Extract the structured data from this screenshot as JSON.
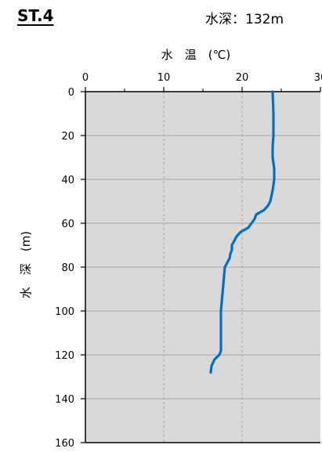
{
  "header": {
    "station": "ST.4",
    "depth_label": "水深",
    "depth_sep": "：",
    "depth_value": "132m"
  },
  "chart_data": {
    "type": "line",
    "title": "",
    "xlabel": "水　温　(℃)",
    "ylabel": "水　深　(m)",
    "x_axis_position": "top",
    "y_inverted": true,
    "xlim": [
      0,
      30
    ],
    "ylim": [
      0,
      160
    ],
    "x_ticks": [
      0,
      10,
      20,
      30
    ],
    "y_ticks": [
      0,
      20,
      40,
      60,
      80,
      100,
      120,
      140,
      160
    ],
    "grid": true,
    "colors": {
      "plot_bg": "#d9d9d9",
      "line": "#0070c0",
      "grid": "#a6a6a6"
    },
    "series": [
      {
        "x": [
          23.9,
          24.0,
          24.0,
          23.9,
          23.9,
          24.1,
          24.1,
          23.9,
          23.6,
          23.3,
          22.8,
          21.8,
          21.6,
          21.2,
          20.8,
          19.8,
          19.3,
          18.7,
          18.7,
          18.5,
          18.4,
          18.1,
          17.8,
          17.7,
          17.6,
          17.5,
          17.4,
          17.3,
          17.3,
          17.3,
          17.3,
          17.1,
          16.5,
          16.1,
          16.0
        ],
        "y": [
          0,
          10,
          20,
          25,
          30,
          35,
          40,
          45,
          50,
          52,
          54,
          56,
          58,
          60,
          62,
          64,
          66,
          70,
          72,
          74,
          76,
          78,
          80,
          84,
          88,
          92,
          96,
          100,
          110,
          116,
          118,
          120,
          122,
          125,
          128
        ]
      }
    ]
  }
}
